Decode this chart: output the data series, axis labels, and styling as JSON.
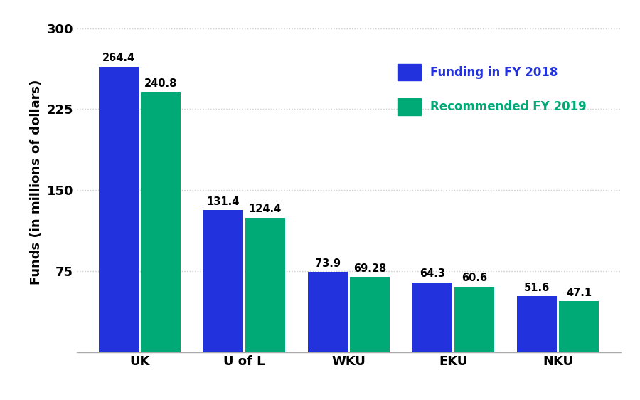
{
  "categories": [
    "UK",
    "U of L",
    "WKU",
    "EKU",
    "NKU"
  ],
  "fy2018": [
    264.4,
    131.4,
    73.9,
    64.3,
    51.6
  ],
  "fy2019": [
    240.8,
    124.4,
    69.28,
    60.6,
    47.1
  ],
  "bar_color_2018": "#2233dd",
  "bar_color_2019": "#00aa77",
  "ylabel": "Funds (in millions of dollars)",
  "yticks": [
    75,
    150,
    225,
    300
  ],
  "ytick_labels": [
    "75",
    "150",
    "225",
    "300"
  ],
  "legend_label_2018": "Funding in FY 2018",
  "legend_label_2019": "Recommended FY 2019",
  "legend_text_color_2018": "#2233dd",
  "legend_text_color_2019": "#00aa77",
  "background_color": "#ffffff",
  "grid_color": "#cccccc",
  "bar_width": 0.38,
  "label_fontsize": 10.5,
  "tick_fontsize": 13,
  "ylabel_fontsize": 13,
  "legend_fontsize": 12,
  "ylim": [
    0,
    315
  ],
  "bar_gap": 0.02
}
